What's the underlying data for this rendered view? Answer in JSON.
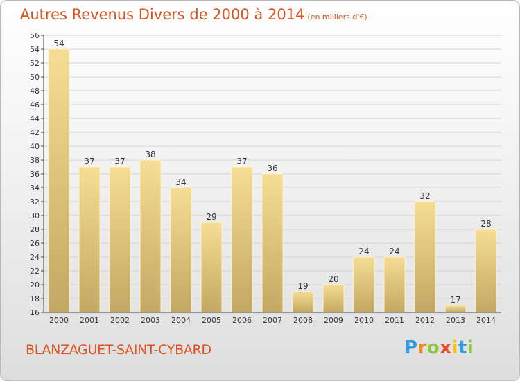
{
  "header": {
    "title": "Autres Revenus Divers de 2000 à 2014",
    "unit_note": "(en milliers d'€)"
  },
  "footer": {
    "commune": "BLANZAGUET-SAINT-CYBARD",
    "logo_letters": [
      "P",
      "r",
      "o",
      "x",
      "i",
      "t",
      "i"
    ]
  },
  "colors": {
    "title": "#e0501e",
    "bar_light": "#f6dd94",
    "bar_dark": "#c2a862",
    "logo": [
      "#2f9de3",
      "#f08a24",
      "#8ec63f",
      "#e64a2e",
      "#f5c21b",
      "#2f9de3",
      "#8ec63f"
    ]
  },
  "chart_data": {
    "type": "bar",
    "title": "Autres Revenus Divers de 2000 à 2014",
    "subtitle": "(en milliers d'€)",
    "xlabel": "",
    "ylabel": "",
    "categories": [
      "2000",
      "2001",
      "2002",
      "2003",
      "2004",
      "2005",
      "2006",
      "2007",
      "2008",
      "2009",
      "2010",
      "2011",
      "2012",
      "2013",
      "2014"
    ],
    "values": [
      54,
      37,
      37,
      38,
      34,
      29,
      37,
      36,
      19,
      20,
      24,
      24,
      32,
      17,
      28
    ],
    "ylim": [
      16,
      56
    ],
    "yticks": [
      16,
      18,
      20,
      22,
      24,
      26,
      28,
      30,
      32,
      34,
      36,
      38,
      40,
      42,
      44,
      46,
      48,
      50,
      52,
      54,
      56
    ],
    "grid": true,
    "data_labels": true,
    "legend": "none"
  }
}
